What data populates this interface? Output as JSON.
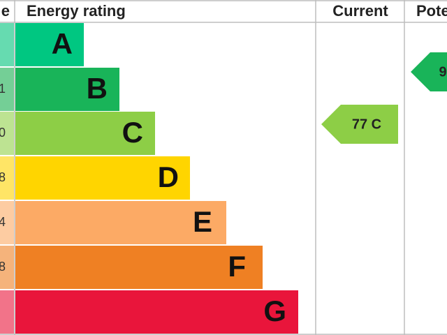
{
  "header": {
    "score": "e",
    "rating": "Energy rating",
    "current": "Current",
    "potential": "Pote"
  },
  "bands": [
    {
      "letter": "A"
    },
    {
      "letter": "B",
      "score": "1"
    },
    {
      "letter": "C",
      "score": "0"
    },
    {
      "letter": "D",
      "score": "8"
    },
    {
      "letter": "E",
      "score": "4"
    },
    {
      "letter": "F",
      "score": "8"
    },
    {
      "letter": "G"
    }
  ],
  "current": {
    "label": "77 C"
  },
  "potential": {
    "label": "9"
  }
}
